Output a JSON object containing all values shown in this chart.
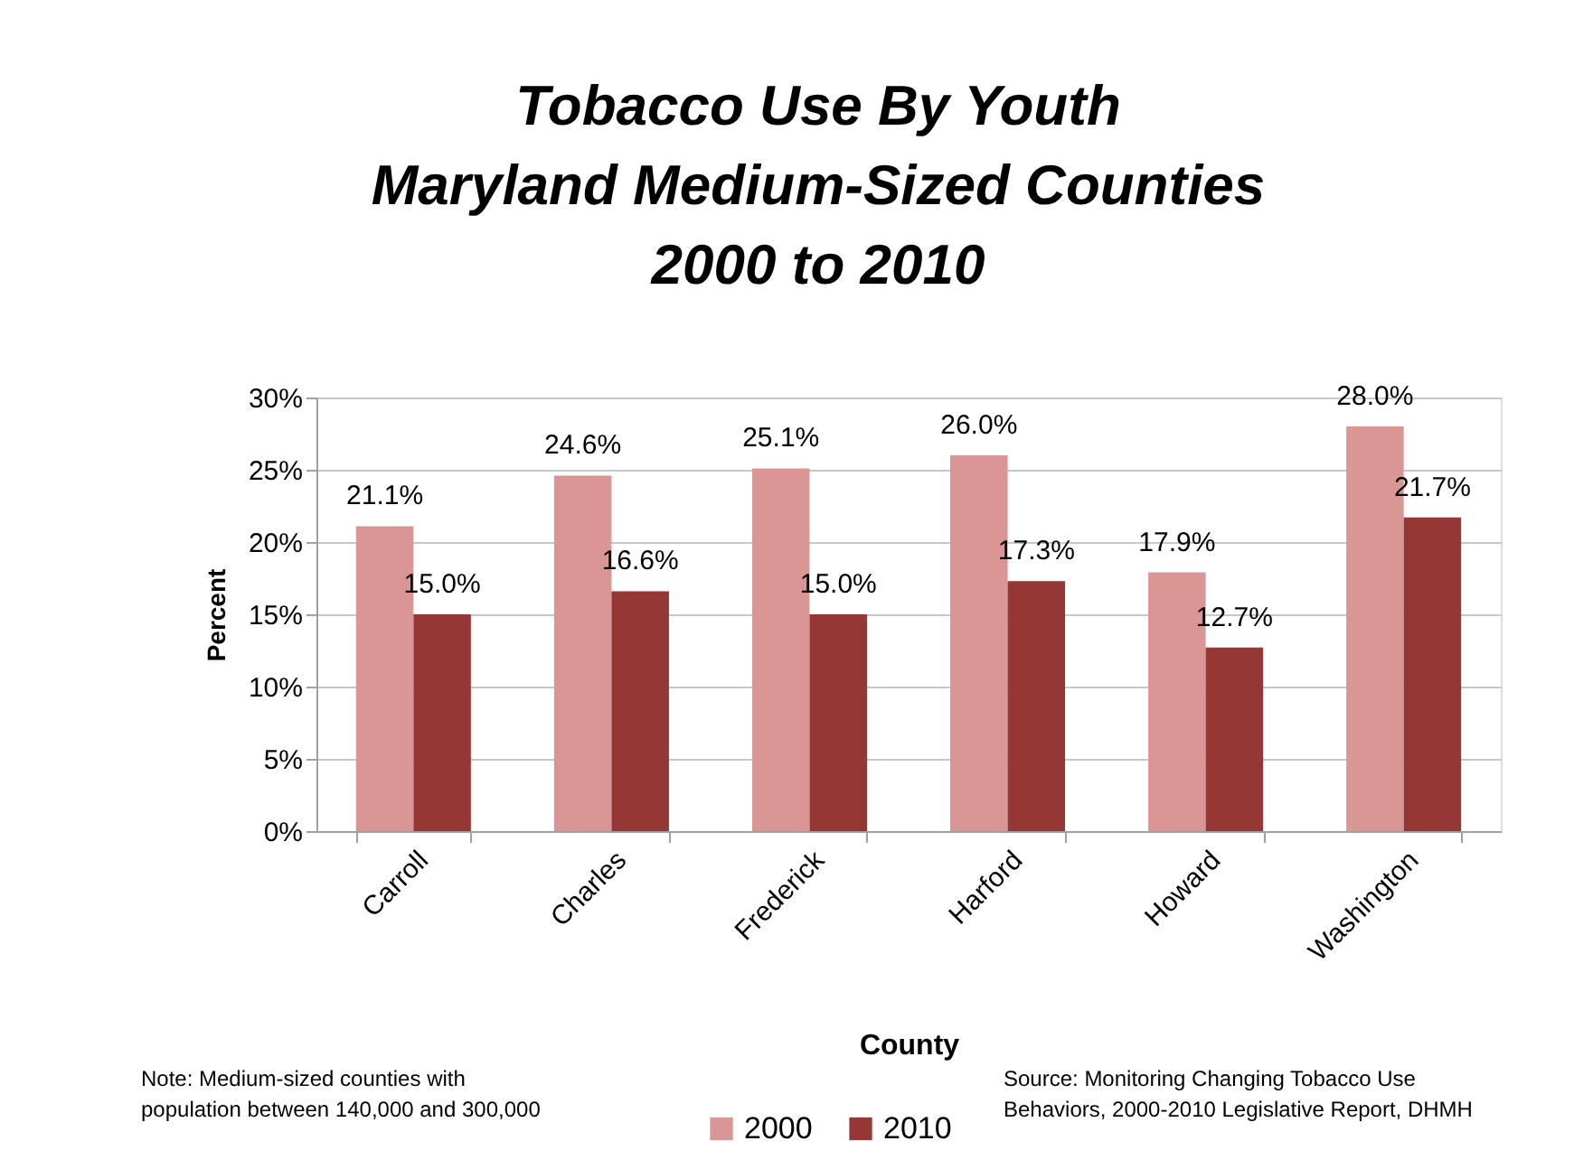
{
  "chart_data": {
    "type": "bar",
    "title": "Tobacco Use By Youth\nMaryland Medium-Sized Counties\n2000 to 2010",
    "xlabel": "County",
    "ylabel": "Percent",
    "categories": [
      "Carroll",
      "Charles",
      "Frederick",
      "Harford",
      "Howard",
      "Washington"
    ],
    "series": [
      {
        "name": "2000",
        "color": "#d99694",
        "values": [
          21.1,
          24.6,
          25.1,
          26.0,
          17.9,
          28.0
        ],
        "value_labels": [
          "21.1%",
          "24.6%",
          "25.1%",
          "26.0%",
          "17.9%",
          "28.0%"
        ]
      },
      {
        "name": "2010",
        "color": "#953735",
        "values": [
          15.0,
          16.6,
          15.0,
          17.3,
          12.7,
          21.7
        ],
        "value_labels": [
          "15.0%",
          "16.6%",
          "15.0%",
          "17.3%",
          "12.7%",
          "21.7%"
        ]
      }
    ],
    "ylim": [
      0,
      30
    ],
    "yticks": [
      {
        "value": 0,
        "label": "0%"
      },
      {
        "value": 5,
        "label": "5%"
      },
      {
        "value": 10,
        "label": "10%"
      },
      {
        "value": 15,
        "label": "15%"
      },
      {
        "value": 20,
        "label": "20%"
      },
      {
        "value": 25,
        "label": "25%"
      },
      {
        "value": 30,
        "label": "30%"
      }
    ],
    "grid": "y",
    "legend": "bottom",
    "annotations": [
      "Note: Medium-sized counties with population between 140,000 and 300,000",
      "Source: Monitoring Changing Tobacco Use Behaviors, 2000-2010 Legislative Report, DHMH"
    ]
  }
}
